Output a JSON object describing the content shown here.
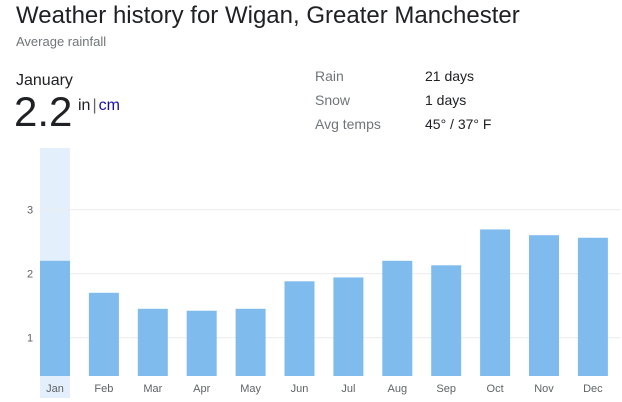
{
  "header": {
    "title": "Weather history for Wigan, Greater Manchester",
    "subtitle": "Average rainfall"
  },
  "selected": {
    "month": "January",
    "value": "2.2",
    "unit_in": "in",
    "unit_sep": "|",
    "unit_cm": "cm"
  },
  "stats": [
    {
      "label": "Rain",
      "value": "21 days"
    },
    {
      "label": "Snow",
      "value": "1 days"
    },
    {
      "label": "Avg temps",
      "value": "45° / 37° F"
    }
  ],
  "colors": {
    "bar": "#80bbee",
    "highlight": "#e3f0fb",
    "grid": "#ececec",
    "axis_text": "#5f6368"
  },
  "chart_data": {
    "type": "bar",
    "categories": [
      "Jan",
      "Feb",
      "Mar",
      "Apr",
      "May",
      "Jun",
      "Jul",
      "Aug",
      "Sep",
      "Oct",
      "Nov",
      "Dec"
    ],
    "values": [
      2.2,
      1.7,
      1.45,
      1.42,
      1.45,
      1.88,
      1.94,
      2.2,
      2.13,
      2.69,
      2.6,
      2.56
    ],
    "highlighted_category": "Jan",
    "yticks": [
      1,
      2,
      3
    ],
    "ylim": [
      0.4,
      3.3
    ],
    "grid": true,
    "title": "",
    "xlabel": "",
    "ylabel": ""
  }
}
